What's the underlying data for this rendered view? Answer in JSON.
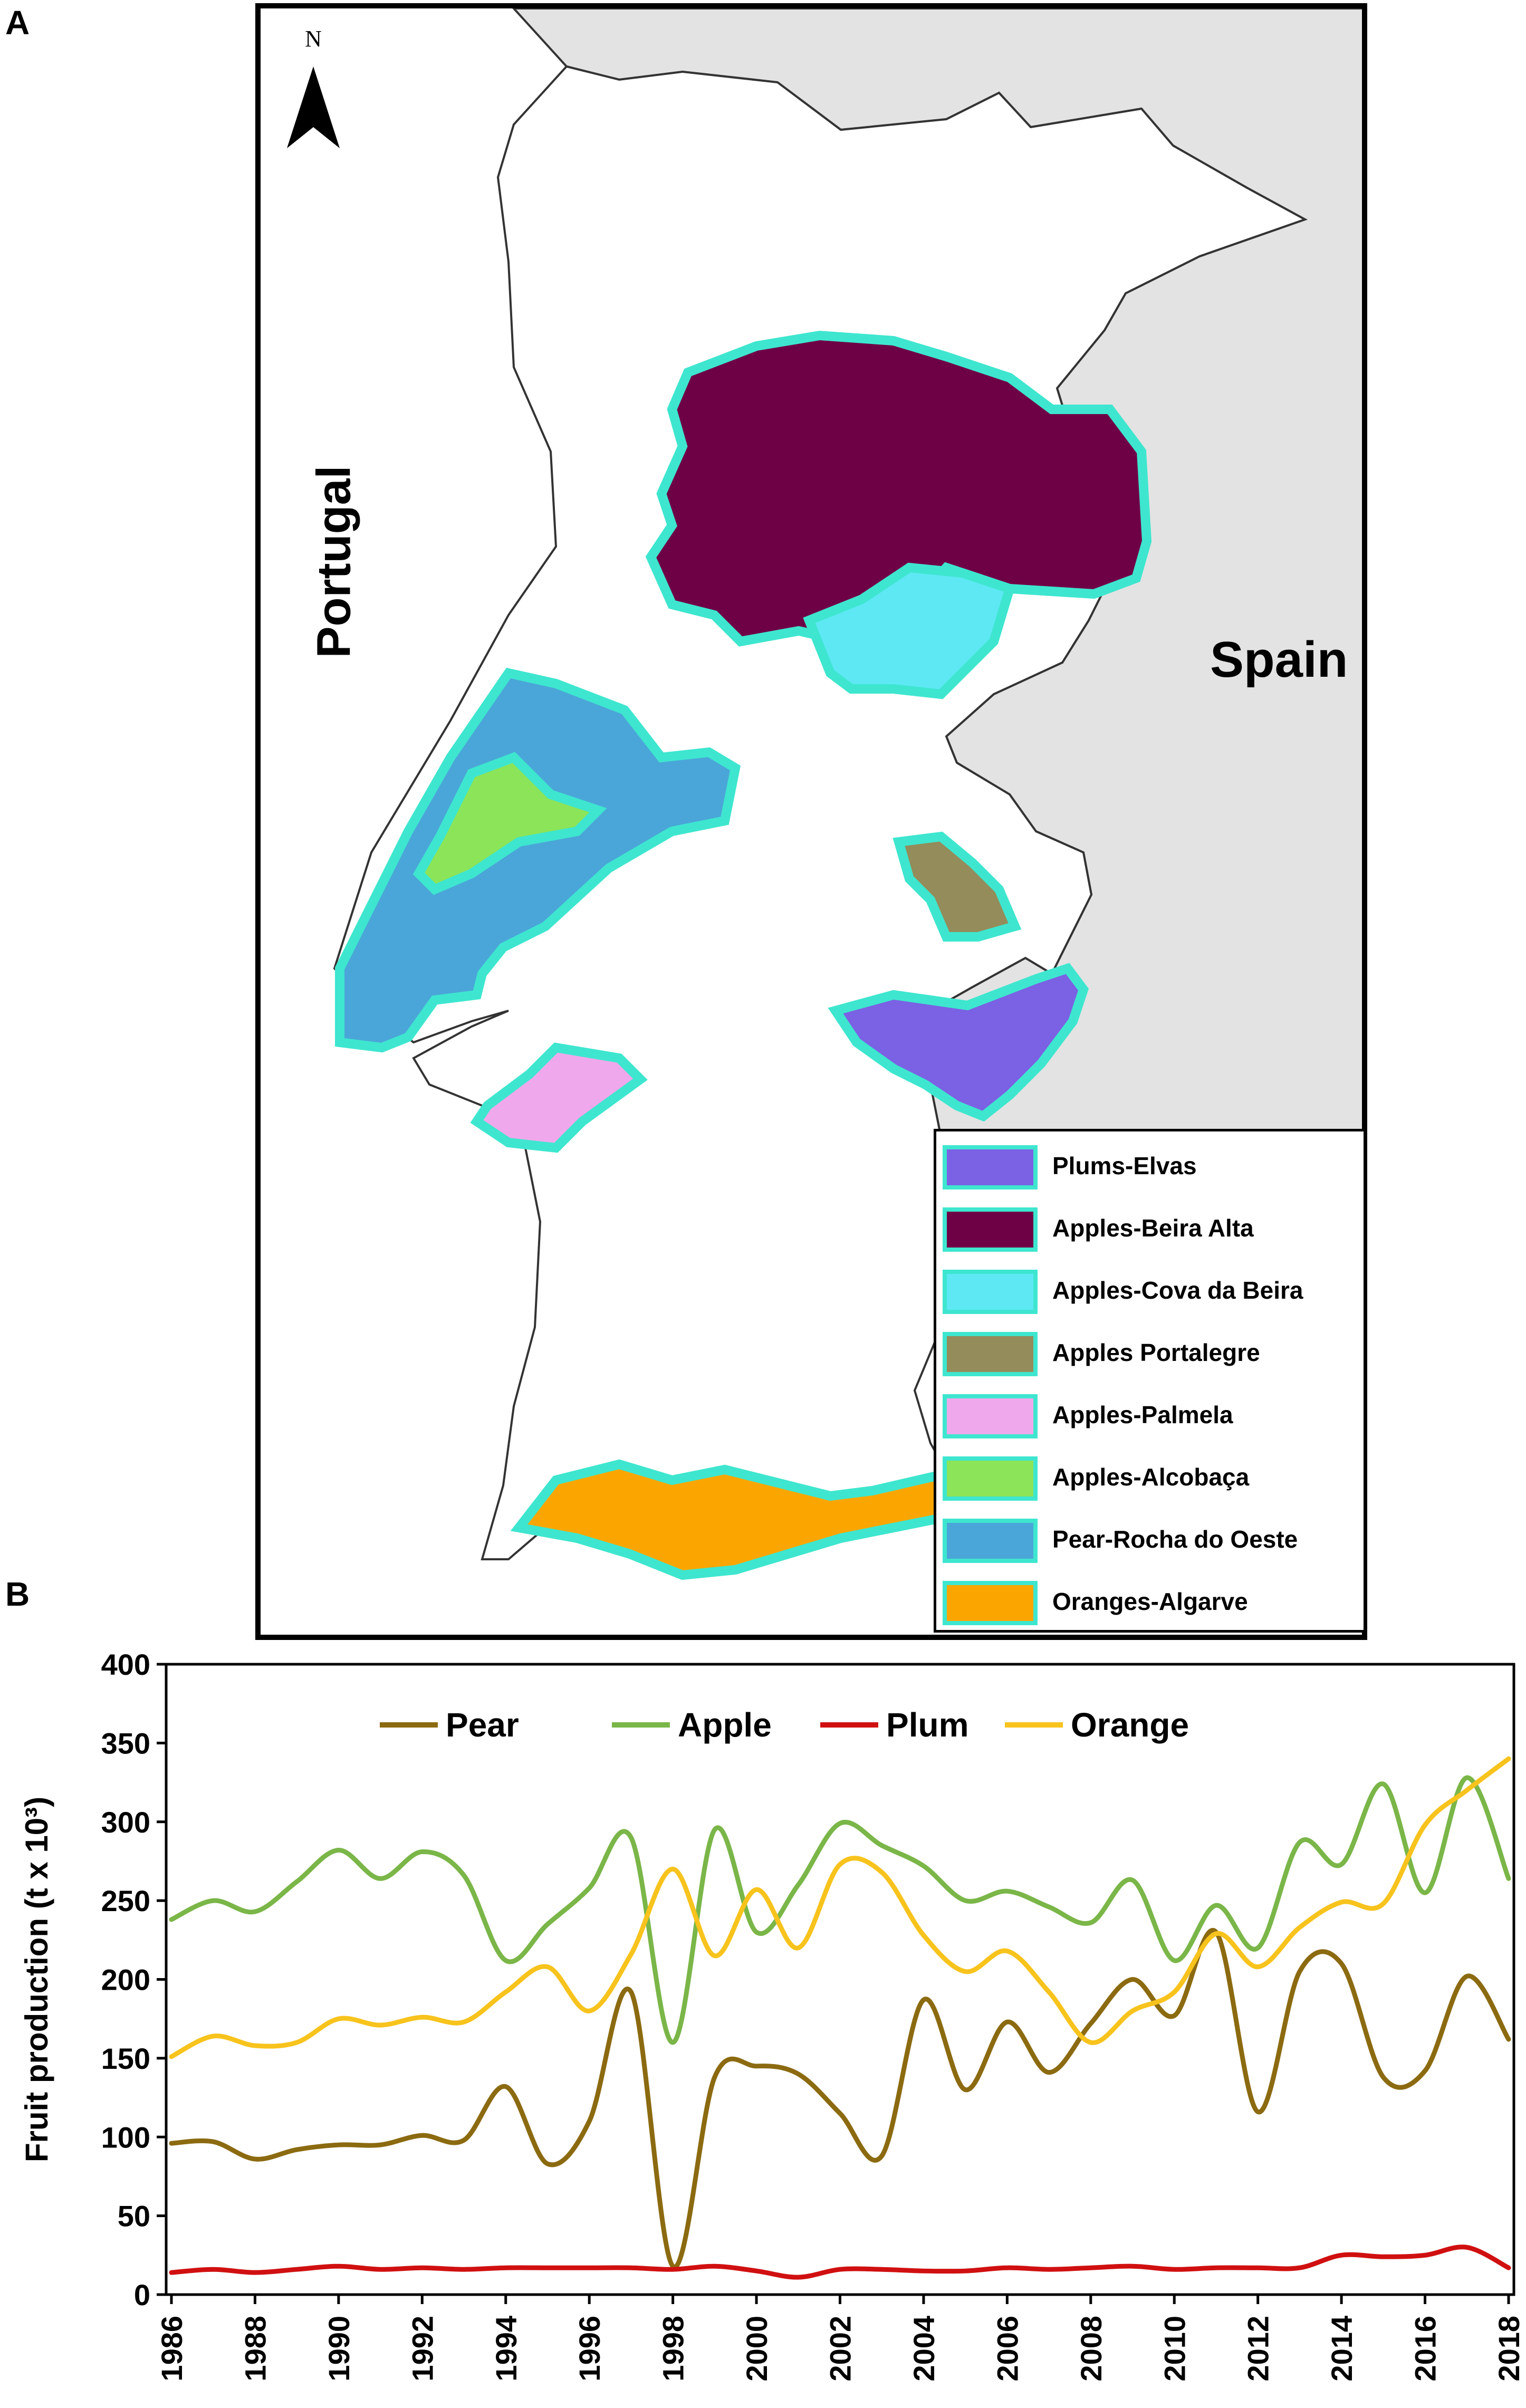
{
  "panels": {
    "a_label": "A",
    "b_label": "B"
  },
  "map": {
    "north_label": "N",
    "countries": {
      "portugal": "Portugal",
      "spain": "Spain"
    },
    "legend": [
      {
        "label": "Plums-Elvas",
        "color": "#7b61e3"
      },
      {
        "label": "Apples-Beira Alta",
        "color": "#6e0046"
      },
      {
        "label": "Apples-Cova da Beira",
        "color": "#5ee8f4"
      },
      {
        "label": "Apples Portalegre",
        "color": "#948c5a"
      },
      {
        "label": "Apples-Palmela",
        "color": "#f0a8ec"
      },
      {
        "label": "Apples-Alcobaça",
        "color": "#8ce458"
      },
      {
        "label": "Pear-Rocha do Oeste",
        "color": "#4aa6d8"
      },
      {
        "label": "Oranges-Algarve",
        "color": "#fba600"
      }
    ],
    "outline_color": "#3ee6cf",
    "spain_fill": "#e3e3e3"
  },
  "chart_data": {
    "type": "line",
    "ylabel": "Fruit production (t x 10³)",
    "xlabel": "",
    "xlim": [
      1986,
      2018
    ],
    "ylim": [
      0,
      400
    ],
    "yticks": [
      0,
      50,
      100,
      150,
      200,
      250,
      300,
      350,
      400
    ],
    "xticks": [
      1986,
      1988,
      1990,
      1992,
      1994,
      1996,
      1998,
      2000,
      2002,
      2004,
      2006,
      2008,
      2010,
      2012,
      2014,
      2016,
      2018
    ],
    "legend_position": "top",
    "x": [
      1986,
      1987,
      1988,
      1989,
      1990,
      1991,
      1992,
      1993,
      1994,
      1995,
      1996,
      1997,
      1998,
      1999,
      2000,
      2001,
      2002,
      2003,
      2004,
      2005,
      2006,
      2007,
      2008,
      2009,
      2010,
      2011,
      2012,
      2013,
      2014,
      2015,
      2016,
      2017,
      2018
    ],
    "series": [
      {
        "name": "Pear",
        "color": "#8b6a10",
        "values": [
          96,
          97,
          86,
          92,
          95,
          95,
          101,
          98,
          132,
          83,
          110,
          192,
          18,
          138,
          145,
          140,
          115,
          88,
          187,
          130,
          173,
          141,
          172,
          200,
          177,
          230,
          116,
          205,
          210,
          138,
          142,
          202,
          162
        ]
      },
      {
        "name": "Apple",
        "color": "#7ab648",
        "values": [
          238,
          250,
          243,
          262,
          282,
          264,
          281,
          266,
          212,
          235,
          258,
          290,
          160,
          295,
          230,
          260,
          299,
          285,
          272,
          250,
          256,
          246,
          236,
          263,
          212,
          247,
          220,
          287,
          273,
          324,
          255,
          328,
          264
        ]
      },
      {
        "name": "Plum",
        "color": "#d01010",
        "values": [
          14,
          16,
          14,
          16,
          18,
          16,
          17,
          16,
          17,
          17,
          17,
          17,
          16,
          18,
          15,
          11,
          16,
          16,
          15,
          15,
          17,
          16,
          17,
          18,
          16,
          17,
          17,
          17,
          25,
          24,
          25,
          30,
          17
        ]
      },
      {
        "name": "Orange",
        "color": "#f7c31c",
        "values": [
          151,
          164,
          158,
          160,
          175,
          171,
          176,
          173,
          192,
          208,
          180,
          216,
          270,
          215,
          257,
          220,
          273,
          268,
          228,
          205,
          218,
          192,
          160,
          180,
          192,
          229,
          208,
          233,
          249,
          248,
          298,
          320,
          340
        ]
      }
    ]
  }
}
